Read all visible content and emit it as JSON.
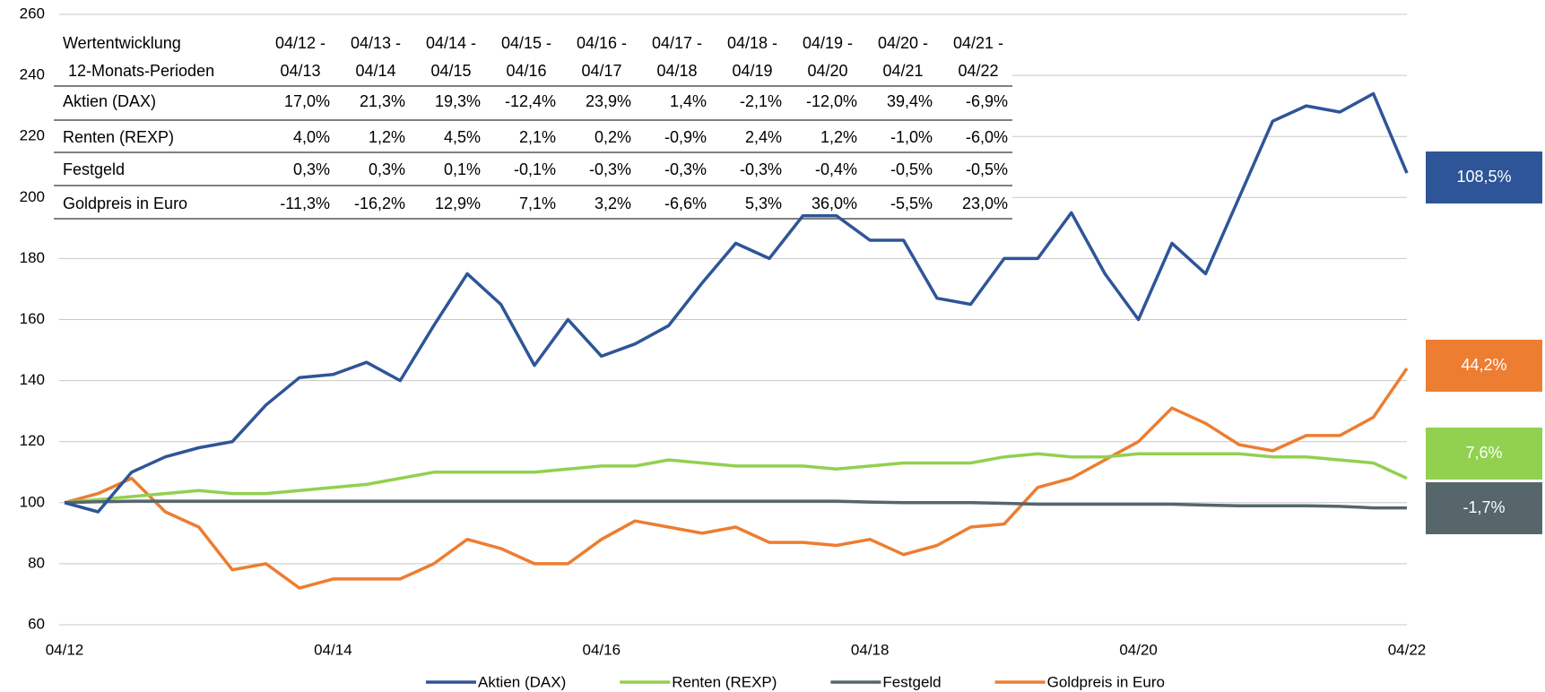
{
  "chart_data": {
    "type": "line",
    "categories": [
      "04/12",
      null,
      null,
      null,
      null,
      null,
      null,
      null,
      "04/14",
      null,
      null,
      null,
      null,
      null,
      null,
      null,
      "04/16",
      null,
      null,
      null,
      null,
      null,
      null,
      null,
      "04/18",
      null,
      null,
      null,
      null,
      null,
      null,
      null,
      "04/20",
      null,
      null,
      null,
      null,
      null,
      null,
      null,
      "04/22"
    ],
    "ylim": [
      60,
      260
    ],
    "yticks": [
      60,
      80,
      100,
      120,
      140,
      160,
      180,
      200,
      220,
      240,
      260
    ],
    "grid": true,
    "legend": "bottom",
    "series": [
      {
        "name": "Aktien (DAX)",
        "color": "#2e5597",
        "end_label": "108,5%",
        "values": [
          100,
          97,
          110,
          115,
          118,
          120,
          132,
          141,
          142,
          146,
          140,
          158,
          175,
          165,
          145,
          160,
          148,
          152,
          158,
          172,
          185,
          180,
          194,
          194,
          186,
          186,
          167,
          165,
          180,
          180,
          195,
          175,
          160,
          185,
          175,
          200,
          225,
          230,
          228,
          234,
          208
        ]
      },
      {
        "name": "Renten (REXP)",
        "color": "#92d050",
        "end_label": "7,6%",
        "values": [
          100,
          101,
          102,
          103,
          104,
          103,
          103,
          104,
          105,
          106,
          108,
          110,
          110,
          110,
          110,
          111,
          112,
          112,
          114,
          113,
          112,
          112,
          112,
          111,
          112,
          113,
          113,
          113,
          115,
          116,
          115,
          115,
          116,
          116,
          116,
          116,
          115,
          115,
          114,
          113,
          108
        ]
      },
      {
        "name": "Festgeld",
        "color": "#56666b",
        "end_label": "-1,7%",
        "values": [
          100,
          100.3,
          100.5,
          100.5,
          100.5,
          100.5,
          100.5,
          100.5,
          100.5,
          100.5,
          100.5,
          100.5,
          100.5,
          100.5,
          100.5,
          100.5,
          100.5,
          100.5,
          100.5,
          100.5,
          100.5,
          100.5,
          100.5,
          100.5,
          100.2,
          100,
          100,
          100,
          99.8,
          99.5,
          99.5,
          99.5,
          99.5,
          99.5,
          99.2,
          99,
          99,
          99,
          98.8,
          98.3,
          98.3
        ]
      },
      {
        "name": "Goldpreis in Euro",
        "color": "#ed7d31",
        "end_label": "44,2%",
        "values": [
          100,
          103,
          108,
          97,
          92,
          78,
          80,
          72,
          75,
          75,
          75,
          80,
          88,
          85,
          80,
          80,
          88,
          94,
          92,
          90,
          92,
          87,
          87,
          86,
          88,
          83,
          86,
          92,
          93,
          105,
          108,
          114,
          120,
          131,
          126,
          119,
          117,
          122,
          122,
          128,
          144
        ]
      }
    ],
    "table": {
      "columns": [
        [
          "Wertentwicklung",
          "12-Monats-Perioden"
        ],
        [
          "04/12 -",
          "04/13"
        ],
        [
          "04/13 -",
          "04/14"
        ],
        [
          "04/14 -",
          "04/15"
        ],
        [
          "04/15 -",
          "04/16"
        ],
        [
          "04/16 -",
          "04/17"
        ],
        [
          "04/17 -",
          "04/18"
        ],
        [
          "04/18 -",
          "04/19"
        ],
        [
          "04/19 -",
          "04/20"
        ],
        [
          "04/20 -",
          "04/21"
        ],
        [
          "04/21 -",
          "04/22"
        ]
      ],
      "rows": [
        [
          "Aktien (DAX)",
          "17,0%",
          "21,3%",
          "19,3%",
          "-12,4%",
          "23,9%",
          "1,4%",
          "-2,1%",
          "-12,0%",
          "39,4%",
          "-6,9%"
        ],
        [
          "Renten (REXP)",
          "4,0%",
          "1,2%",
          "4,5%",
          "2,1%",
          "0,2%",
          "-0,9%",
          "2,4%",
          "1,2%",
          "-1,0%",
          "-6,0%"
        ],
        [
          "Festgeld",
          "0,3%",
          "0,3%",
          "0,1%",
          "-0,1%",
          "-0,3%",
          "-0,3%",
          "-0,3%",
          "-0,4%",
          "-0,5%",
          "-0,5%"
        ],
        [
          "Goldpreis in Euro",
          "-11,3%",
          "-16,2%",
          "12,9%",
          "7,1%",
          "3,2%",
          "-6,6%",
          "5,3%",
          "36,0%",
          "-5,5%",
          "23,0%"
        ]
      ]
    }
  }
}
